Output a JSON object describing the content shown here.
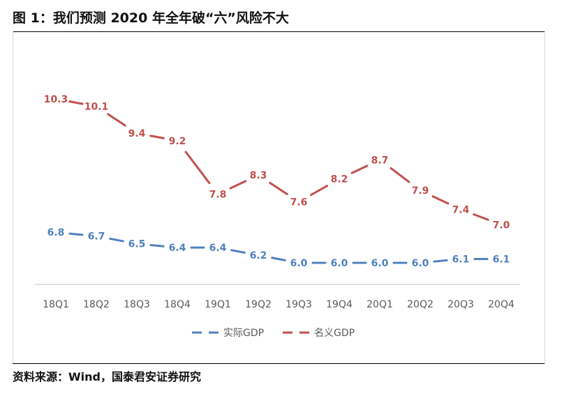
{
  "figure": {
    "title": "图 1：我们预测 2020 年全年破“六”风险不大",
    "source": "资料来源：Wind，国泰君安证券研究"
  },
  "colors": {
    "real": "#4f81bd",
    "nominal": "#c0504d",
    "axis": "#d9d9d9",
    "text": "#595959"
  },
  "chart_data": {
    "type": "line",
    "categories": [
      "18Q1",
      "18Q2",
      "18Q3",
      "18Q4",
      "19Q1",
      "19Q2",
      "19Q3",
      "19Q4",
      "20Q1",
      "20Q2",
      "20Q3",
      "20Q4"
    ],
    "series": [
      {
        "name": "实际GDP",
        "values": [
          6.8,
          6.7,
          6.5,
          6.4,
          6.4,
          6.2,
          6.0,
          6.0,
          6.0,
          6.0,
          6.1,
          6.1
        ],
        "labels": [
          "6.8",
          "6.7",
          "6.5",
          "6.4",
          "6.4",
          "6.2",
          "6.0",
          "6.0",
          "6.0",
          "6.0",
          "6.1",
          "6.1"
        ]
      },
      {
        "name": "名义GDP",
        "values": [
          10.3,
          10.1,
          9.4,
          9.2,
          7.8,
          8.3,
          7.6,
          8.2,
          8.7,
          7.9,
          7.4,
          7.0
        ],
        "labels": [
          "10.3",
          "10.1",
          "9.4",
          "9.2",
          "7.8",
          "8.3",
          "7.6",
          "8.2",
          "8.7",
          "7.9",
          "7.4",
          "7.0"
        ]
      }
    ],
    "line_style": "dashed",
    "legend_position": "bottom",
    "grid": false
  }
}
